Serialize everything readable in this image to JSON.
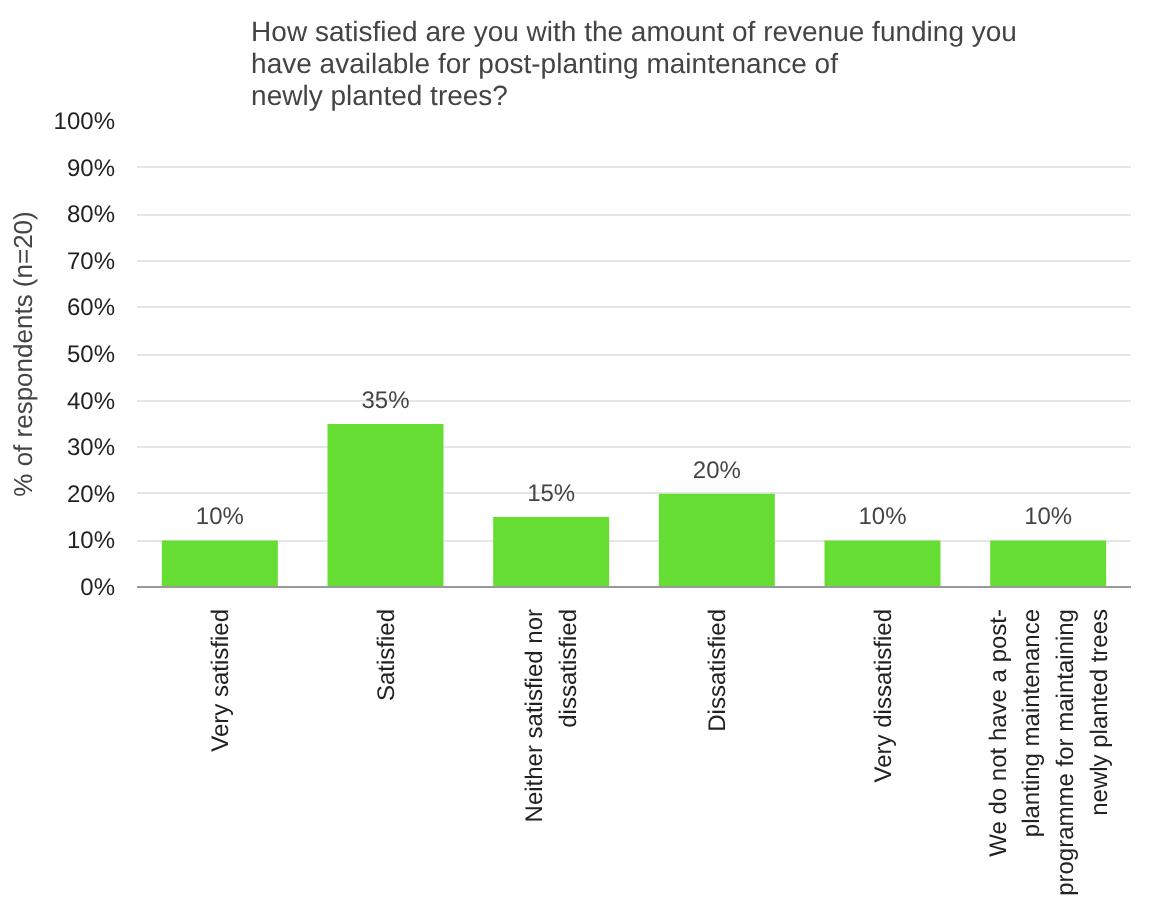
{
  "chart_data": {
    "type": "bar",
    "title": "How satisfied are you with the amount of revenue funding you\nhave available for post-planting maintenance of\nnewly planted trees?",
    "ylabel": "% of respondents (n=20)",
    "categories": [
      "Very satisfied",
      "Satisfied",
      "Neither satisfied nor\ndissatisfied",
      "Dissatisfied",
      "Very dissatisfied",
      "We do not have a post-\nplanting maintenance\nprogramme for maintaining\nnewly planted trees"
    ],
    "values": [
      10,
      35,
      15,
      20,
      10,
      10
    ],
    "value_labels": [
      "10%",
      "35%",
      "15%",
      "20%",
      "10%",
      "10%"
    ],
    "color": "#66dd33",
    "ylim": [
      0,
      100
    ],
    "yticks": [
      {
        "value": 0,
        "label": "0%"
      },
      {
        "value": 10,
        "label": "10%"
      },
      {
        "value": 20,
        "label": "20%"
      },
      {
        "value": 30,
        "label": "30%"
      },
      {
        "value": 40,
        "label": "40%"
      },
      {
        "value": 50,
        "label": "50%"
      },
      {
        "value": 60,
        "label": "60%"
      },
      {
        "value": 70,
        "label": "70%"
      },
      {
        "value": 80,
        "label": "80%"
      },
      {
        "value": 90,
        "label": "90%"
      },
      {
        "value": 100,
        "label": "100%"
      }
    ],
    "grid": "y"
  }
}
